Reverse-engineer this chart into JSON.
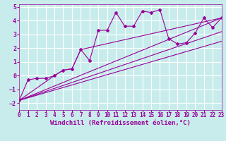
{
  "xlabel": "Windchill (Refroidissement éolien,°C)",
  "background_color": "#c8ecec",
  "grid_color": "#ffffff",
  "line_color": "#990099",
  "xlim": [
    0,
    23
  ],
  "ylim": [
    -2.5,
    5.2
  ],
  "x_ticks": [
    0,
    1,
    2,
    3,
    4,
    5,
    6,
    7,
    8,
    9,
    10,
    11,
    12,
    13,
    14,
    15,
    16,
    17,
    18,
    19,
    20,
    21,
    22,
    23
  ],
  "y_ticks": [
    -2,
    -1,
    0,
    1,
    2,
    3,
    4,
    5
  ],
  "line1_x": [
    0,
    1,
    2,
    3,
    4,
    5,
    6,
    7,
    8,
    9,
    10,
    11,
    12,
    13,
    14,
    15,
    16,
    17,
    18,
    19,
    20,
    21,
    22,
    23
  ],
  "line1_y": [
    -1.8,
    -0.3,
    -0.2,
    -0.2,
    0.0,
    0.4,
    0.5,
    1.9,
    1.1,
    3.3,
    3.3,
    4.6,
    3.6,
    3.6,
    4.7,
    4.6,
    4.8,
    2.7,
    2.3,
    2.4,
    3.1,
    4.2,
    3.5,
    4.2
  ],
  "line2_x": [
    0,
    4,
    5,
    6,
    7,
    23
  ],
  "line2_y": [
    -1.8,
    0.0,
    0.4,
    0.5,
    1.9,
    4.2
  ],
  "line3_x": [
    0,
    23
  ],
  "line3_y": [
    -1.8,
    4.2
  ],
  "line4_x": [
    0,
    23
  ],
  "line4_y": [
    -1.8,
    2.5
  ],
  "line5_x": [
    0,
    23
  ],
  "line5_y": [
    -1.8,
    3.2
  ],
  "tick_fontsize": 5.5,
  "xlabel_fontsize": 6.5
}
